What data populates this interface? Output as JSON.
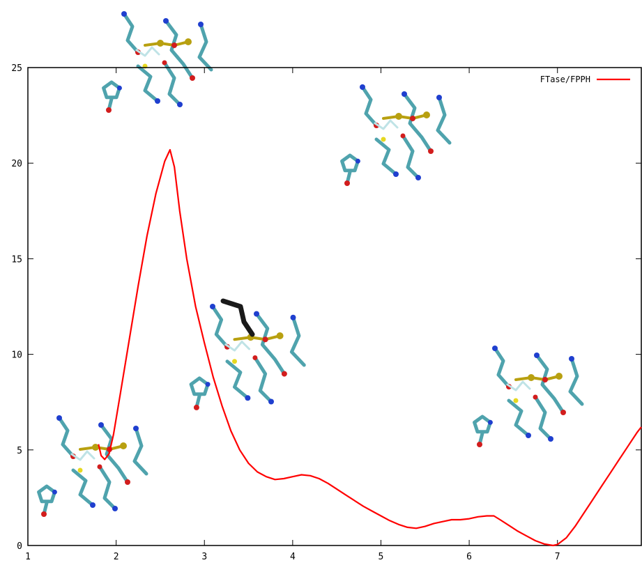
{
  "chart_data": {
    "type": "line",
    "title": "",
    "xlabel": "",
    "ylabel": "",
    "xlim": [
      1,
      7.95
    ],
    "ylim": [
      0,
      25
    ],
    "xticks": [
      1,
      2,
      3,
      4,
      5,
      6,
      7
    ],
    "yticks": [
      0,
      5,
      10,
      15,
      20,
      25
    ],
    "legend_position": "top-right",
    "grid": false,
    "series": [
      {
        "name": "FTase/FPPH",
        "color": "#ff0000",
        "points": [
          [
            1.8,
            5.3
          ],
          [
            1.83,
            4.7
          ],
          [
            1.87,
            4.5
          ],
          [
            1.92,
            4.8
          ],
          [
            1.97,
            5.8
          ],
          [
            2.05,
            8.0
          ],
          [
            2.15,
            10.8
          ],
          [
            2.25,
            13.6
          ],
          [
            2.35,
            16.2
          ],
          [
            2.45,
            18.4
          ],
          [
            2.55,
            20.1
          ],
          [
            2.61,
            20.7
          ],
          [
            2.66,
            19.8
          ],
          [
            2.72,
            17.5
          ],
          [
            2.8,
            15.0
          ],
          [
            2.9,
            12.5
          ],
          [
            3.0,
            10.6
          ],
          [
            3.1,
            8.8
          ],
          [
            3.2,
            7.3
          ],
          [
            3.3,
            6.0
          ],
          [
            3.4,
            5.0
          ],
          [
            3.5,
            4.3
          ],
          [
            3.6,
            3.85
          ],
          [
            3.7,
            3.6
          ],
          [
            3.8,
            3.45
          ],
          [
            3.9,
            3.5
          ],
          [
            4.0,
            3.6
          ],
          [
            4.1,
            3.7
          ],
          [
            4.2,
            3.65
          ],
          [
            4.3,
            3.5
          ],
          [
            4.4,
            3.25
          ],
          [
            4.5,
            2.95
          ],
          [
            4.6,
            2.65
          ],
          [
            4.7,
            2.35
          ],
          [
            4.8,
            2.05
          ],
          [
            4.9,
            1.8
          ],
          [
            5.0,
            1.55
          ],
          [
            5.1,
            1.3
          ],
          [
            5.2,
            1.1
          ],
          [
            5.3,
            0.95
          ],
          [
            5.4,
            0.9
          ],
          [
            5.5,
            1.0
          ],
          [
            5.6,
            1.15
          ],
          [
            5.7,
            1.25
          ],
          [
            5.8,
            1.35
          ],
          [
            5.9,
            1.35
          ],
          [
            6.0,
            1.4
          ],
          [
            6.1,
            1.5
          ],
          [
            6.2,
            1.55
          ],
          [
            6.28,
            1.55
          ],
          [
            6.35,
            1.35
          ],
          [
            6.45,
            1.05
          ],
          [
            6.55,
            0.75
          ],
          [
            6.65,
            0.5
          ],
          [
            6.75,
            0.25
          ],
          [
            6.85,
            0.08
          ],
          [
            6.95,
            0.0
          ],
          [
            7.0,
            0.05
          ],
          [
            7.1,
            0.4
          ],
          [
            7.2,
            1.0
          ],
          [
            7.3,
            1.7
          ],
          [
            7.4,
            2.4
          ],
          [
            7.5,
            3.1
          ],
          [
            7.6,
            3.8
          ],
          [
            7.7,
            4.5
          ],
          [
            7.8,
            5.2
          ],
          [
            7.9,
            5.9
          ],
          [
            7.95,
            6.2
          ]
        ]
      }
    ]
  },
  "molecule_images": [
    {
      "icon": "molecular-structure-reactant-state"
    },
    {
      "icon": "molecular-structure-transition-state"
    },
    {
      "icon": "molecular-structure-intermediate-state"
    },
    {
      "icon": "molecular-structure-upper-right-state"
    },
    {
      "icon": "molecular-structure-product-state"
    }
  ]
}
